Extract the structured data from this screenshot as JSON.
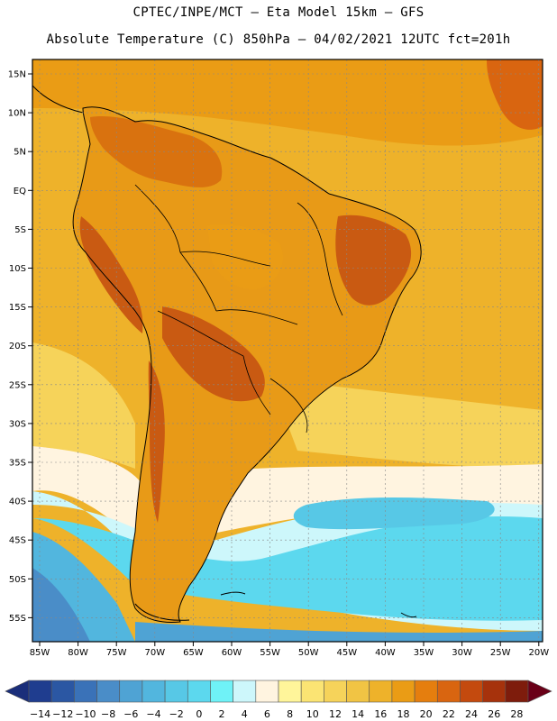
{
  "header": {
    "title_line1": "CPTEC/INPE/MCT —  Eta Model 15km — GFS",
    "title_line2": "Absolute Temperature (C) 850hPa — 04/02/2021 12UTC fct=201h"
  },
  "axes": {
    "lat_labels": [
      "15N",
      "10N",
      "5N",
      "EQ",
      "5S",
      "10S",
      "15S",
      "20S",
      "25S",
      "30S",
      "35S",
      "40S",
      "45S",
      "50S",
      "55S"
    ],
    "lon_labels": [
      "85W",
      "80W",
      "75W",
      "70W",
      "65W",
      "60W",
      "55W",
      "50W",
      "45W",
      "40W",
      "35W",
      "30W",
      "25W",
      "20W"
    ]
  },
  "colorbar": {
    "labels": [
      "-14",
      "-12",
      "-10",
      "-8",
      "-6",
      "-4",
      "-2",
      "0",
      "2",
      "4",
      "6",
      "8",
      "10",
      "12",
      "14",
      "16",
      "18",
      "20",
      "22",
      "24",
      "26",
      "28"
    ],
    "colors": [
      "#1f3d8f",
      "#2b57a3",
      "#3a72b8",
      "#4a8dc8",
      "#4fa3d4",
      "#52b6de",
      "#57c8e6",
      "#5cd8ee",
      "#6ff2f7",
      "#cdf7fb",
      "#fff4e0",
      "#fff59a",
      "#fbe473",
      "#f6d35a",
      "#f1c444",
      "#eeb22a",
      "#ea9c15",
      "#e57e0e",
      "#d96510",
      "#c44a0e",
      "#a6320c",
      "#7e1c0c"
    ],
    "end_low": "#1a2e7a",
    "end_high": "#6a0018"
  },
  "colors": {
    "background_warm": "#eeb22a",
    "continent": "#e89a17",
    "continent_hot": "#d9720f",
    "andes_hot": "#c95a12",
    "cool_ocean": "#4fd0e6",
    "cold_ocean": "#4a8dc8",
    "pale_band": "#fff4e0",
    "yellow_band": "#f6d35a"
  }
}
